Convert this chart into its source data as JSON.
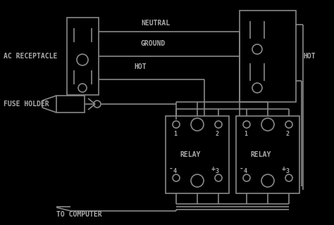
{
  "bg_color": "#000000",
  "line_color": "#888888",
  "text_color": "#aaaaaa",
  "fig_width": 4.74,
  "fig_height": 3.2,
  "labels": {
    "ac_receptacle": "AC RECEPTACLE",
    "fuse_holder": "FUSE HOLDER",
    "neutral": "NEUTRAL",
    "ground": "GROUND",
    "hot_label": "HOT",
    "hot_right": "HOT",
    "relay": "RELAY",
    "to_computer": "TO COMPUTER"
  }
}
